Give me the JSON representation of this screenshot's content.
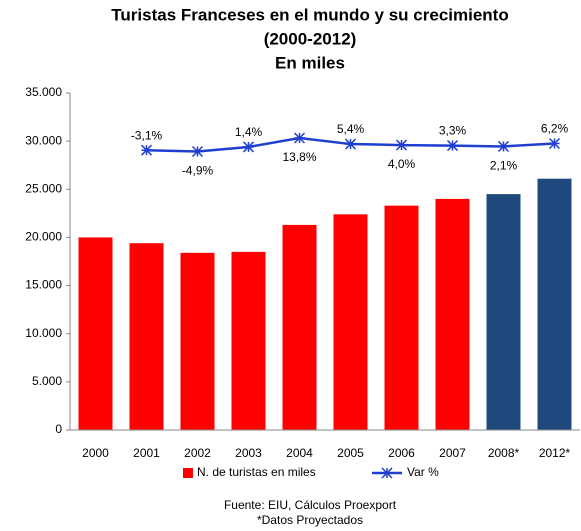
{
  "chart_data": {
    "type": "bar",
    "title": [
      "Turistas Franceses en el mundo y su crecimiento",
      "(2000-2012)",
      "En miles"
    ],
    "categories": [
      "2000",
      "2001",
      "2002",
      "2003",
      "2004",
      "2005",
      "2006",
      "2007",
      "2008*",
      "2012*"
    ],
    "series": [
      {
        "name": "N. de turistas en miles",
        "type": "bar",
        "color": "#ff0000",
        "colors": [
          "#ff0000",
          "#ff0000",
          "#ff0000",
          "#ff0000",
          "#ff0000",
          "#ff0000",
          "#ff0000",
          "#ff0000",
          "#1f497d",
          "#1f497d"
        ],
        "values": [
          20000,
          19400,
          18400,
          18500,
          21300,
          22400,
          23300,
          24000,
          24500,
          26100
        ]
      },
      {
        "name": "Var %",
        "type": "line",
        "axis": "y2",
        "color": "#1f3fd0",
        "values": [
          null,
          -3.1,
          -4.9,
          1.4,
          13.8,
          5.4,
          4.0,
          3.3,
          2.1,
          6.2
        ],
        "value_labels": [
          null,
          "-3,1%",
          "-4,9%",
          "1,4%",
          "13,8%",
          "5,4%",
          "4,0%",
          "3,3%",
          "2,1%",
          "6,2%"
        ]
      }
    ],
    "ylim": [
      0,
      35000
    ],
    "yticks": [
      0,
      {
        "value": 5000,
        "label": "5.000"
      },
      {
        "value": 10000,
        "label": "10.000"
      },
      {
        "value": 15000,
        "label": "15.000"
      },
      {
        "value": 20000,
        "label": "20.000"
      },
      {
        "value": 25000,
        "label": "25.000"
      },
      {
        "value": 30000,
        "label": "30.000"
      },
      {
        "value": 35000,
        "label": "35.000"
      }
    ],
    "y2lim": [
      -390,
      76
    ],
    "grid": false,
    "legend": "bottom",
    "notes": [
      "Fuente:  EIU, Cálculos Proexport",
      "*Datos Proyectados"
    ]
  }
}
